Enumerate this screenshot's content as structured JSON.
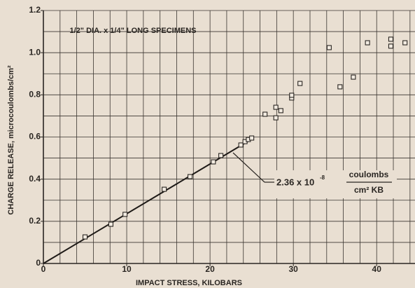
{
  "chart_data": {
    "type": "scatter",
    "title": "1/2\" DIA. x 1/4\" LONG SPECIMENS",
    "x_label": "IMPACT STRESS, KILOBARS",
    "y_label": "CHARGE RELEASE, microcoulombs/cm²",
    "xlim": [
      0,
      44.6
    ],
    "ylim": [
      0,
      1.2
    ],
    "xticks": [
      0,
      10,
      20,
      30,
      40
    ],
    "yticks": [
      0,
      0.2,
      0.4,
      0.6,
      0.8,
      {
        "value": 1.0,
        "label": "1.0"
      },
      1.2
    ],
    "xgrid": [
      2,
      4,
      6,
      8,
      10,
      12,
      14,
      16,
      18,
      20,
      22,
      24,
      26,
      28,
      30,
      32,
      34,
      36,
      38,
      40,
      42,
      44
    ],
    "ygrid": [
      0.1,
      0.2,
      0.3,
      0.4,
      0.5,
      0.6,
      0.7,
      0.8,
      0.9,
      1.0,
      1.1,
      1.2
    ],
    "grid": true,
    "color": "#2a2622",
    "series": [
      {
        "name": "specimens",
        "color": "#2a2622",
        "x": [
          5.0,
          8.1,
          9.8,
          14.5,
          17.6,
          20.4,
          21.3,
          23.7,
          24.2,
          24.6,
          25.0,
          26.6,
          27.9,
          27.9,
          28.5,
          29.8,
          29.8,
          30.8,
          34.3,
          35.6,
          37.2,
          38.9,
          41.7,
          41.7,
          43.4
        ],
        "values": [
          0.126,
          0.186,
          0.233,
          0.352,
          0.412,
          0.482,
          0.512,
          0.562,
          0.578,
          0.588,
          0.595,
          0.708,
          0.741,
          0.691,
          0.725,
          0.785,
          0.798,
          0.854,
          1.024,
          0.838,
          0.884,
          1.047,
          1.064,
          1.031,
          1.047
        ]
      }
    ],
    "fit_line": {
      "x": [
        0,
        25
      ],
      "values": [
        0,
        0.59
      ]
    },
    "annotation": {
      "text": "2.36 x 10",
      "exponent": "-8",
      "numerator": "coulombs",
      "denominator": "cm² KB"
    }
  }
}
